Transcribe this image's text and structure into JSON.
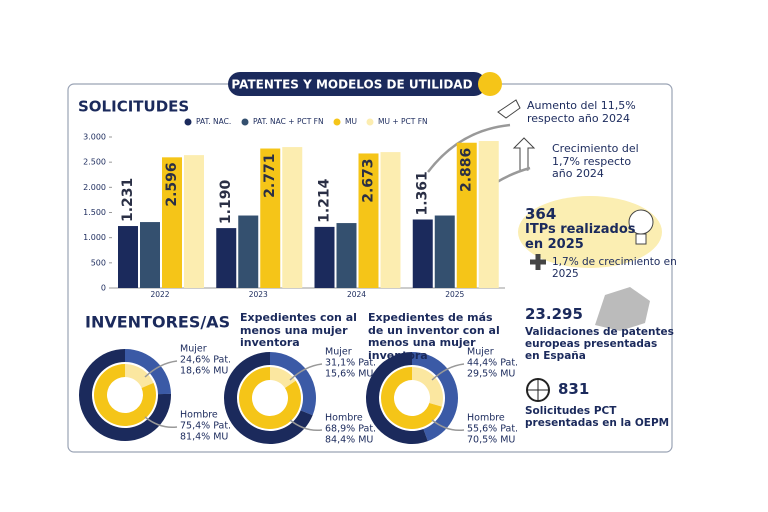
{
  "header": {
    "title": "PATENTES Y MODELOS DE UTILIDAD"
  },
  "chart_data": [
    {
      "type": "bar",
      "title": "SOLICITUDES",
      "categories": [
        "2022",
        "2023",
        "2024",
        "2025"
      ],
      "series": [
        {
          "name": "PAT. NAC.",
          "color": "#1b2a5c",
          "values": [
            1231,
            1190,
            1214,
            1361
          ],
          "value_labels": [
            "1.231",
            "1.190",
            "1.214",
            "1.361"
          ]
        },
        {
          "name": "PAT. NAC + PCT FN",
          "color": "#34506f",
          "values": [
            1310,
            1440,
            1290,
            1440
          ]
        },
        {
          "name": "MU",
          "color": "#f5c518",
          "values": [
            2596,
            2771,
            2673,
            2886
          ],
          "value_labels": [
            "2.596",
            "2.771",
            "2.673",
            "2.886"
          ]
        },
        {
          "name": "MU + PCT FN",
          "color": "#fcedb0",
          "values": [
            2640,
            2800,
            2700,
            2920
          ]
        }
      ],
      "ylim": [
        0,
        3000
      ],
      "yticks": [
        0,
        500,
        {
          "value": 1000,
          "label": "1.000"
        },
        {
          "value": 1500,
          "label": "1.500"
        },
        {
          "value": 2000,
          "label": "2.000"
        },
        {
          "value": 2500,
          "label": "2.500"
        },
        {
          "value": 3000,
          "label": "3.000"
        }
      ],
      "annotations": [
        "Aumento del 11,5% respecto año 2024",
        "Crecimiento del 1,7% respecto año 2024"
      ]
    },
    {
      "type": "donut",
      "title": "INVENTORES/AS",
      "categories": [
        "Mujer",
        "Hombre"
      ],
      "series": [
        {
          "colors": [
            "#3b5aa6",
            "#1b2a5c"
          ],
          "values": [
            24.6,
            75.4
          ],
          "value_labels": [
            "24,6% Pat.",
            "75,4% Pat."
          ]
        },
        {
          "colors": [
            "#fbe7a0",
            "#f5c518"
          ],
          "values": [
            18.6,
            81.4
          ],
          "value_labels": [
            "18,6% MU",
            "81,4% MU"
          ]
        }
      ]
    },
    {
      "type": "donut",
      "title": "Expedientes con al menos una mujer inventora",
      "categories": [
        "Mujer",
        "Hombre"
      ],
      "series": [
        {
          "colors": [
            "#3b5aa6",
            "#1b2a5c"
          ],
          "values": [
            31.1,
            68.9
          ],
          "value_labels": [
            "31,1% Pat.",
            "68,9% Pat."
          ]
        },
        {
          "colors": [
            "#fbe7a0",
            "#f5c518"
          ],
          "values": [
            15.6,
            84.4
          ],
          "value_labels": [
            "15,6% MU",
            "84,4% MU"
          ]
        }
      ]
    },
    {
      "type": "donut",
      "title": "Expedientes de más de un inventor con al menos una mujer inventora",
      "categories": [
        "Mujer",
        "Hombre"
      ],
      "series": [
        {
          "colors": [
            "#3b5aa6",
            "#1b2a5c"
          ],
          "values": [
            44.4,
            55.6
          ],
          "value_labels": [
            "44,4% Pat.",
            "55,6% Pat."
          ]
        },
        {
          "colors": [
            "#fbe7a0",
            "#f5c518"
          ],
          "values": [
            29.5,
            70.5
          ],
          "value_labels": [
            "29,5% MU",
            "70,5% MU"
          ]
        }
      ]
    }
  ],
  "stats": [
    {
      "value": "364",
      "label": "ITPs realizados en 2025",
      "note": "1,7% de crecimiento en 2025"
    },
    {
      "value": "23.295",
      "label": "Validaciones de patentes europeas presentadas en España"
    },
    {
      "value": "831",
      "label": "Solicitudes PCT presentadas en la OEPM"
    }
  ]
}
